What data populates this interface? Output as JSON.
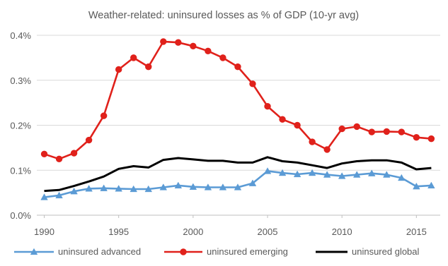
{
  "chart_data": {
    "type": "line",
    "title": "Weather-related: uninsured losses as % of GDP (10-yr avg)",
    "xlabel": "",
    "ylabel": "",
    "x": [
      1990,
      1991,
      1992,
      1993,
      1994,
      1995,
      1996,
      1997,
      1998,
      1999,
      2000,
      2001,
      2002,
      2003,
      2004,
      2005,
      2006,
      2007,
      2008,
      2009,
      2010,
      2011,
      2012,
      2013,
      2014,
      2015,
      2016
    ],
    "xlim": [
      1989.5,
      2016.6
    ],
    "ylim": [
      0,
      0.4
    ],
    "x_ticks": [
      1990,
      1995,
      2000,
      2005,
      2010,
      2015
    ],
    "x_tick_labels": [
      "1990",
      "1995",
      "2000",
      "2005",
      "2010",
      "2015"
    ],
    "y_ticks": [
      0,
      0.1,
      0.2,
      0.3,
      0.4
    ],
    "y_tick_labels": [
      "0.0%",
      "0.1%",
      "0.2%",
      "0.3%",
      "0.4%"
    ],
    "grid": "horizontal",
    "legend_position": "bottom",
    "series": [
      {
        "name": "uninsured advanced",
        "color": "#5b9bd5",
        "marker": "triangle",
        "values": [
          0.04,
          0.044,
          0.053,
          0.059,
          0.06,
          0.059,
          0.058,
          0.058,
          0.062,
          0.066,
          0.063,
          0.062,
          0.062,
          0.062,
          0.071,
          0.098,
          0.094,
          0.091,
          0.094,
          0.09,
          0.087,
          0.09,
          0.093,
          0.09,
          0.083,
          0.064,
          0.066
        ]
      },
      {
        "name": "uninsured emerging",
        "color": "#e0211b",
        "marker": "circle",
        "values": [
          0.136,
          0.125,
          0.138,
          0.167,
          0.221,
          0.324,
          0.35,
          0.33,
          0.386,
          0.384,
          0.376,
          0.365,
          0.35,
          0.33,
          0.292,
          0.242,
          0.213,
          0.2,
          0.163,
          0.146,
          0.192,
          0.197,
          0.185,
          0.186,
          0.185,
          0.173,
          0.17
        ]
      },
      {
        "name": "uninsured global",
        "color": "#000000",
        "marker": "none",
        "values": [
          0.054,
          0.056,
          0.065,
          0.075,
          0.086,
          0.103,
          0.109,
          0.106,
          0.123,
          0.127,
          0.124,
          0.121,
          0.121,
          0.117,
          0.117,
          0.129,
          0.12,
          0.117,
          0.111,
          0.105,
          0.115,
          0.12,
          0.122,
          0.122,
          0.117,
          0.102,
          0.105
        ]
      }
    ]
  }
}
